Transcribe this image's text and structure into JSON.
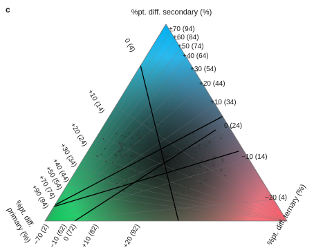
{
  "panel_label": "c",
  "chart_data": {
    "type": "ternary",
    "title": "",
    "axes": {
      "secondary": {
        "label": "%pt. diff. secondary (%)",
        "ticks": [
          "+70 (94)",
          "+60 (84)",
          "+50 (74)",
          "+40 (64)",
          "+30 (54)",
          "+20 (44)",
          "+10 (34)",
          "0 (24)",
          "−10 (14)",
          "−20 (4)"
        ]
      },
      "primary": {
        "label": "%pt. diff. primary (%)",
        "ticks": [
          "+10 (14)",
          "0 (4)",
          "+20 (24)",
          "+30 (34)",
          "+40 (44)",
          "+50 (54)",
          "+70 (74)",
          "+90 (94)"
        ]
      },
      "ternary": {
        "label": "%pt. diff. ternary (%)",
        "ticks": [
          "−70 (2)",
          "−10 (62)",
          "0 (72)",
          "+10 (82)",
          "+20 (92)"
        ]
      }
    },
    "color_scheme": {
      "secondary_corner": "#00aeef",
      "primary_corner": "#00c853",
      "ternary_corner": "#ff5a66",
      "dark_center": "#1a1a1a"
    },
    "grid": true,
    "reference_lines": [
      "0 (4)",
      "0 (24)",
      "0 (72)"
    ]
  }
}
